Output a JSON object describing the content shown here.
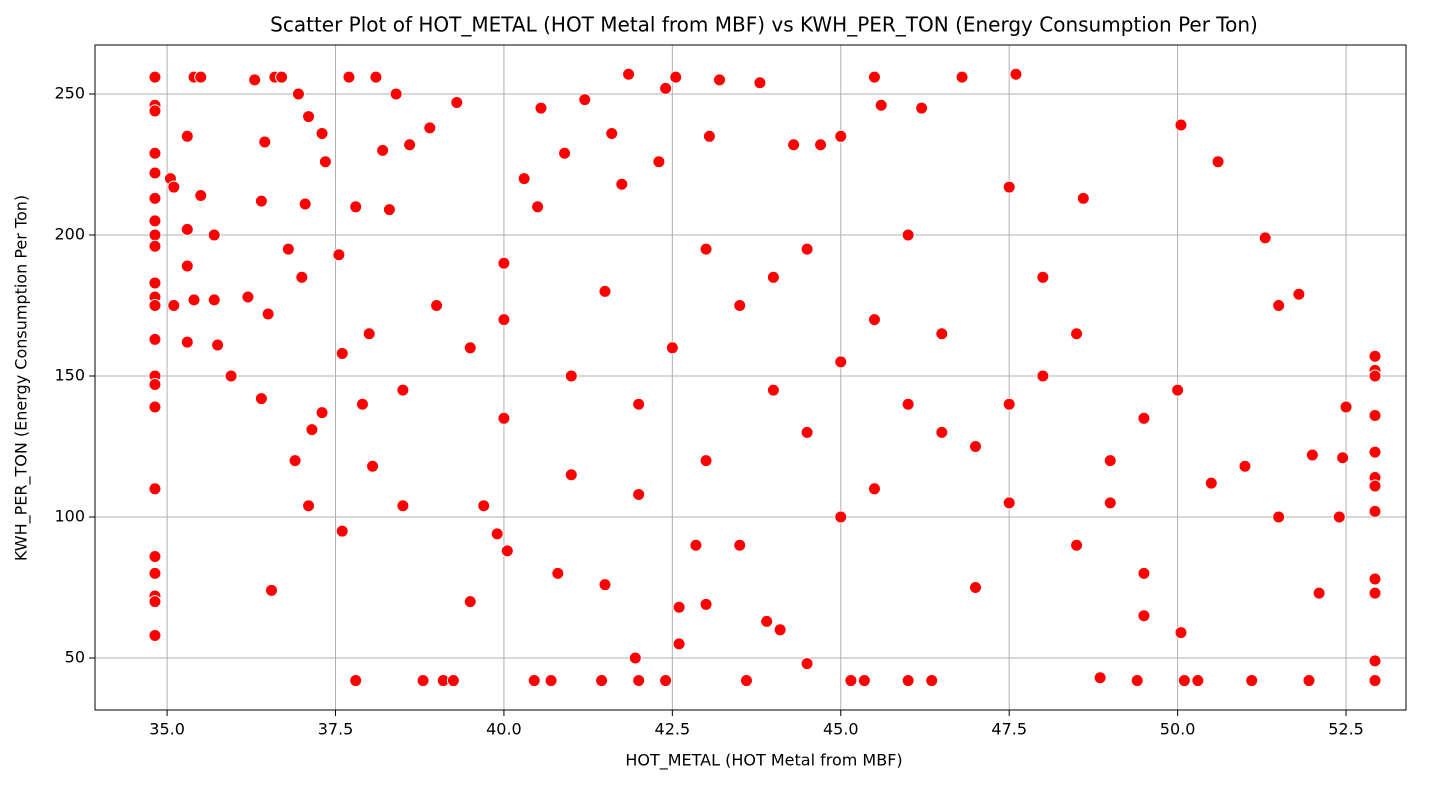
{
  "chart_data": {
    "type": "scatter",
    "title": "Scatter Plot of HOT_METAL (HOT Metal from MBF) vs KWH_PER_TON (Energy Consumption Per Ton)",
    "x_label": "HOT_METAL (HOT Metal from MBF)",
    "y_label": "KWH_PER_TON (Energy Consumption Per Ton)",
    "xlim": [
      33.93,
      53.39
    ],
    "ylim": [
      31.56,
      267.38
    ],
    "xticks": [
      {
        "value": 35,
        "label": "35.0"
      },
      37.5,
      {
        "value": 40,
        "label": "40.0"
      },
      42.5,
      {
        "value": 45,
        "label": "45.0"
      },
      47.5,
      {
        "value": 50,
        "label": "50.0"
      },
      52.5
    ],
    "yticks": [
      50,
      100,
      150,
      200,
      250
    ],
    "grid": true,
    "series": [
      {
        "color": "#ff0000",
        "x": [
          34.82,
          34.82,
          34.82,
          34.82,
          34.82,
          34.82,
          34.82,
          34.82,
          34.82,
          34.82,
          34.82,
          34.82,
          34.82,
          34.82,
          34.82,
          34.82,
          34.82,
          34.82,
          34.82,
          34.82,
          34.82,
          34.82,
          35.05,
          35.1,
          35.1,
          35.3,
          35.3,
          35.3,
          35.3,
          35.4,
          35.5,
          35.4,
          35.5,
          35.7,
          35.7,
          35.75,
          35.95,
          36.2,
          36.3,
          36.4,
          36.45,
          36.4,
          36.5,
          36.55,
          36.6,
          36.7,
          36.8,
          36.9,
          36.95,
          37.05,
          37.1,
          37.15,
          37.1,
          37.3,
          37.35,
          37.3,
          37.55,
          37.6,
          37.6,
          37.7,
          37.8,
          37.8,
          37.9,
          38.05,
          38.1,
          38.2,
          38.3,
          38.4,
          38.5,
          38.6,
          38.8,
          38.9,
          39.1,
          39.25,
          39.3,
          39.5,
          39.7,
          39.9,
          40.0,
          40.05,
          40.3,
          40.45,
          40.55,
          40.7,
          40.8,
          40.9,
          41.2,
          41.45,
          41.5,
          41.6,
          41.75,
          41.85,
          41.95,
          42.0,
          42.3,
          42.4,
          42.4,
          42.55,
          42.6,
          42.6,
          42.85,
          43.0,
          43.05,
          43.2,
          43.6,
          43.8,
          43.9,
          44.1,
          44.5,
          44.3,
          44.7,
          45.0,
          45.15,
          45.35,
          45.5,
          45.6,
          46.0,
          46.2,
          46.35,
          46.8,
          47.6,
          47.5,
          48.6,
          48.85,
          49.4,
          50.05,
          50.05,
          50.1,
          50.3,
          50.6,
          51.1,
          51.3,
          51.5,
          51.8,
          51.95,
          52.0,
          52.1,
          52.4,
          52.5,
          52.45,
          41,
          41.5,
          42,
          42.5,
          43,
          43.5,
          44,
          44.5,
          45,
          45.5,
          46,
          46.5,
          47,
          47.5,
          48,
          48.5,
          49,
          49.5,
          50,
          50.5,
          39,
          39.5,
          40,
          40.5,
          43,
          44,
          45,
          46,
          47,
          48,
          49,
          49.5,
          51,
          51.5,
          38,
          38.5,
          37,
          43.5,
          44.5,
          45.5,
          46.5,
          47.5,
          42,
          41,
          40,
          48.5,
          49.5,
          52.93,
          52.93,
          52.93,
          52.93,
          52.93,
          52.93,
          52.93,
          52.93,
          52.93,
          52.93,
          52.93,
          52.93
        ],
        "values": [
          256,
          246,
          244,
          229,
          222,
          213,
          205,
          200,
          196,
          183,
          178,
          175,
          163,
          150,
          147,
          139,
          110,
          86,
          80,
          72,
          70,
          58,
          220,
          217,
          175,
          235,
          202,
          189,
          162,
          177,
          214,
          256,
          256,
          200,
          177,
          161,
          150,
          178,
          255,
          212,
          233,
          142,
          172,
          74,
          256,
          256,
          195,
          120,
          250,
          211,
          242,
          131,
          104,
          236,
          226,
          137,
          193,
          158,
          95,
          256,
          210,
          42,
          140,
          118,
          256,
          230,
          209,
          250,
          104,
          232,
          42,
          238,
          42,
          42,
          247,
          70,
          104,
          94,
          170,
          88,
          220,
          42,
          245,
          42,
          80,
          229,
          248,
          42,
          76,
          236,
          218,
          257,
          50,
          42,
          226,
          252,
          42,
          256,
          68,
          55,
          90,
          69,
          235,
          255,
          42,
          254,
          63,
          60,
          48,
          232,
          232,
          235,
          42,
          42,
          256,
          246,
          42,
          245,
          42,
          256,
          257,
          217,
          213,
          43,
          42,
          239,
          59,
          42,
          42,
          226,
          42,
          199,
          175,
          179,
          42,
          122,
          73,
          100,
          139,
          121,
          150,
          180,
          140,
          160,
          120,
          175,
          145,
          130,
          155,
          110,
          140,
          165,
          125,
          105,
          150,
          90,
          120,
          80,
          145,
          112,
          175,
          160,
          190,
          210,
          195,
          185,
          100,
          200,
          75,
          185,
          105,
          65,
          118,
          100,
          165,
          145,
          185,
          90,
          195,
          170,
          130,
          140,
          108,
          115,
          135,
          165,
          135,
          157,
          152,
          150,
          136,
          123,
          114,
          111,
          102,
          78,
          73,
          49,
          42
        ]
      }
    ]
  }
}
